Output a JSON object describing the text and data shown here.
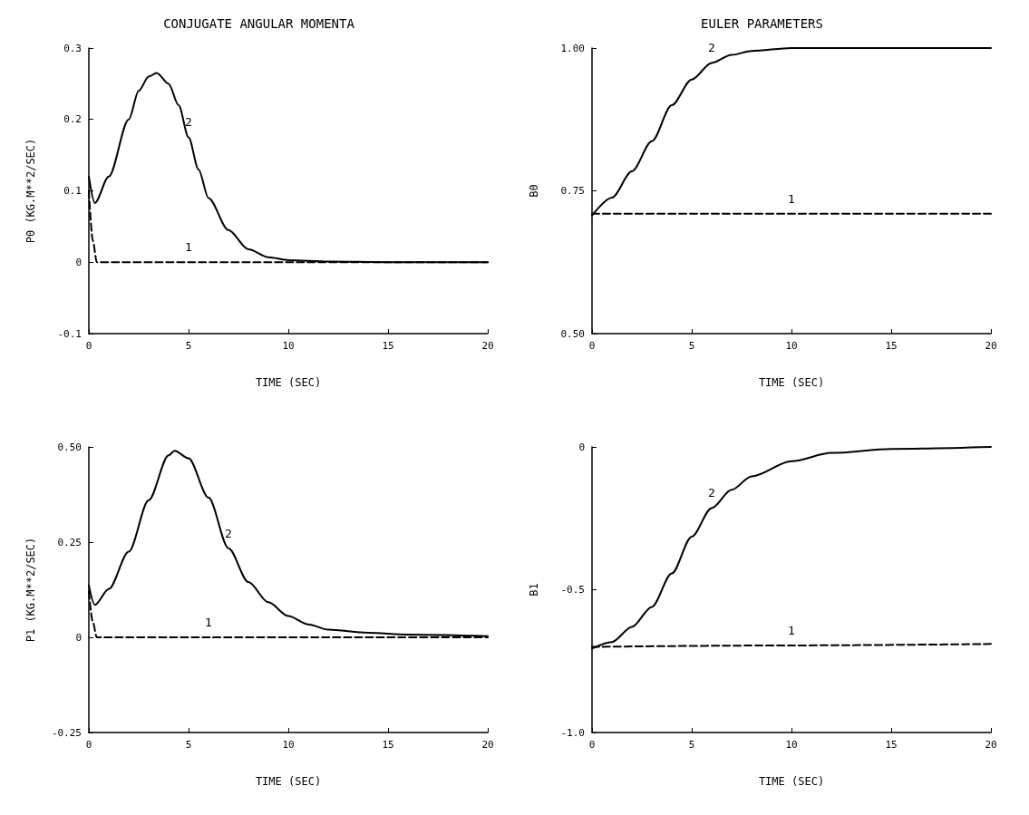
{
  "chart_data": [
    {
      "type": "line",
      "title": "CONJUGATE ANGULAR MOMENTA",
      "xlabel": "TIME (SEC)",
      "ylabel": "P0 (KG.M**2/SEC)",
      "xlim": [
        0,
        20
      ],
      "xticks": [
        0,
        5,
        10,
        15,
        20
      ],
      "ylim": [
        -0.1,
        0.3
      ],
      "yticks": [
        -0.1,
        0,
        0.1,
        0.2,
        0.3
      ],
      "grid": false,
      "legend": false,
      "marker": "none",
      "series": [
        {
          "name": "1",
          "color": "#000000",
          "line_style": "dashed",
          "x": [
            0,
            0.2,
            0.4,
            5,
            10,
            15,
            20
          ],
          "values": [
            0.1,
            0.03,
            0,
            0,
            0,
            0,
            0
          ]
        },
        {
          "name": "2",
          "color": "#000000",
          "line_style": "solid",
          "x": [
            0,
            0.3,
            1,
            2,
            2.5,
            3,
            3.4,
            4,
            4.5,
            5,
            5.5,
            6,
            7,
            8,
            9,
            10,
            12,
            15,
            20
          ],
          "values": [
            0.12,
            0.083,
            0.12,
            0.2,
            0.24,
            0.26,
            0.265,
            0.25,
            0.22,
            0.175,
            0.13,
            0.09,
            0.045,
            0.018,
            0.007,
            0.003,
            0.001,
            0,
            0
          ]
        }
      ]
    },
    {
      "type": "line",
      "title": "EULER PARAMETERS",
      "xlabel": "TIME (SEC)",
      "ylabel": "B0",
      "xlim": [
        0,
        20
      ],
      "xticks": [
        0,
        5,
        10,
        15,
        20
      ],
      "ylim": [
        0.5,
        1
      ],
      "yticks": [
        {
          "value": 0.5,
          "label": "0.50"
        },
        {
          "value": 0.75,
          "label": "0.75"
        },
        {
          "value": 1,
          "label": "1.00"
        }
      ],
      "grid": false,
      "legend": false,
      "marker": "none",
      "series": [
        {
          "name": "1",
          "color": "#000000",
          "line_style": "dashed",
          "x": [
            0,
            5,
            10,
            15,
            20
          ],
          "values": [
            0.71,
            0.71,
            0.71,
            0.71,
            0.71
          ]
        },
        {
          "name": "2",
          "color": "#000000",
          "line_style": "solid",
          "x": [
            0,
            1,
            2,
            3,
            4,
            5,
            6,
            7,
            8,
            10,
            15,
            20
          ],
          "values": [
            0.707,
            0.738,
            0.784,
            0.837,
            0.9,
            0.945,
            0.974,
            0.988,
            0.995,
            1,
            1,
            1
          ]
        }
      ]
    },
    {
      "type": "line",
      "xlabel": "TIME (SEC)",
      "ylabel": "P1 (KG.M**2/SEC)",
      "xlim": [
        0,
        20
      ],
      "xticks": [
        0,
        5,
        10,
        15,
        20
      ],
      "ylim": [
        -0.25,
        0.5
      ],
      "yticks": [
        -0.25,
        0,
        0.25,
        {
          "value": 0.5,
          "label": "0.50"
        }
      ],
      "grid": false,
      "legend": false,
      "marker": "none",
      "series": [
        {
          "name": "1",
          "color": "#000000",
          "line_style": "dashed",
          "x": [
            0,
            0.2,
            0.4,
            6,
            10,
            15,
            20
          ],
          "values": [
            0.12,
            0.04,
            0,
            0,
            0,
            0,
            0
          ]
        },
        {
          "name": "2",
          "color": "#000000",
          "line_style": "solid",
          "x": [
            0,
            0.3,
            1,
            2,
            3,
            4,
            4.3,
            5,
            6,
            7,
            8,
            9,
            10,
            11,
            12,
            14,
            16,
            20
          ],
          "values": [
            0.136,
            0.085,
            0.127,
            0.225,
            0.36,
            0.478,
            0.49,
            0.47,
            0.367,
            0.234,
            0.145,
            0.092,
            0.056,
            0.034,
            0.02,
            0.012,
            0.007,
            0.003
          ]
        }
      ]
    },
    {
      "type": "line",
      "xlabel": "TIME (SEC)",
      "ylabel": "B1",
      "xlim": [
        0,
        20
      ],
      "xticks": [
        0,
        5,
        10,
        15,
        20
      ],
      "ylim": [
        -1,
        0
      ],
      "yticks": [
        {
          "value": -1,
          "label": "-1.0"
        },
        -0.5,
        0
      ],
      "grid": false,
      "legend": false,
      "marker": "none",
      "series": [
        {
          "name": "1",
          "color": "#000000",
          "line_style": "dashed",
          "x": [
            0,
            10,
            20
          ],
          "values": [
            -0.7,
            -0.695,
            -0.69
          ]
        },
        {
          "name": "2",
          "color": "#000000",
          "line_style": "solid",
          "x": [
            0,
            1,
            2,
            3,
            4,
            5,
            6,
            7,
            8,
            10,
            12,
            15,
            20
          ],
          "values": [
            -0.706,
            -0.683,
            -0.63,
            -0.56,
            -0.443,
            -0.314,
            -0.214,
            -0.15,
            -0.103,
            -0.05,
            -0.021,
            -0.007,
            0
          ]
        }
      ]
    }
  ]
}
